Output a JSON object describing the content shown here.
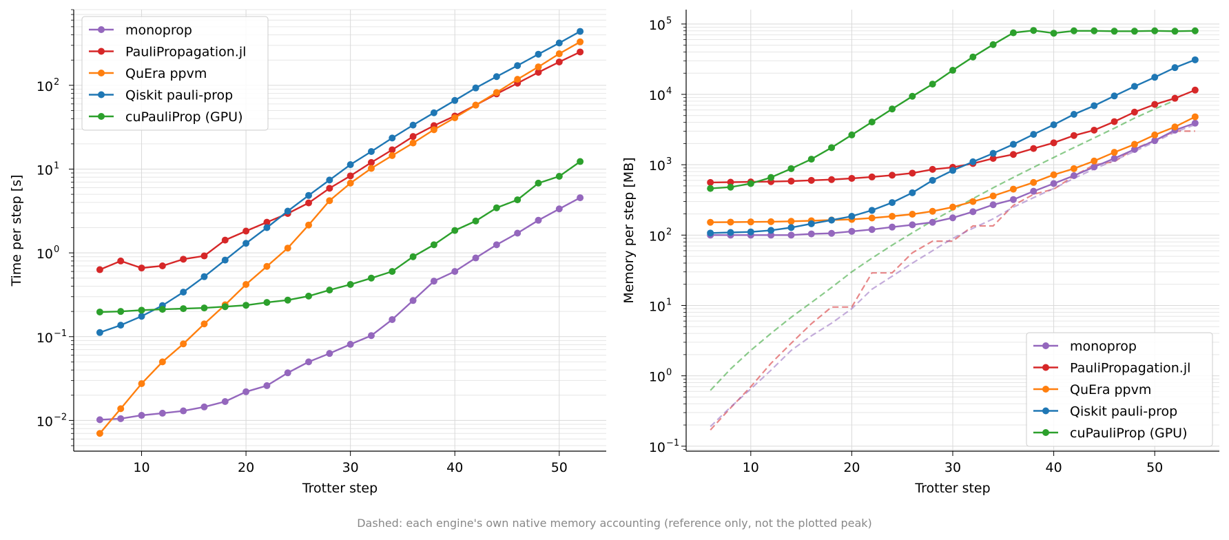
{
  "footnote": "Dashed: each engine's own native memory accounting (reference only, not the plotted peak)",
  "chart_data": [
    {
      "type": "line",
      "xlabel": "Trotter step",
      "ylabel": "Time per step [s]",
      "yscale": "log",
      "xlim": [
        3.5,
        54.5
      ],
      "ylim": [
        0.0043,
        800
      ],
      "xticks": [
        10,
        20,
        30,
        40,
        50
      ],
      "xtick_labels": [
        "10",
        "20",
        "30",
        "40",
        "50"
      ],
      "yticks": [
        0.01,
        0.1,
        1,
        10,
        100
      ],
      "ytick_labels": [
        "10",
        "10",
        "10",
        "10",
        "10"
      ],
      "ytick_exponents": [
        "−2",
        "−1",
        "0",
        "1",
        "2"
      ],
      "grid": true,
      "legend_position": "upper-left",
      "x": [
        6,
        8,
        10,
        12,
        14,
        16,
        18,
        20,
        22,
        24,
        26,
        28,
        30,
        32,
        34,
        36,
        38,
        40,
        42,
        44,
        46,
        48,
        50,
        52
      ],
      "series": [
        {
          "name": "monoprop",
          "color": "#9467bd",
          "values": [
            0.0102,
            0.0105,
            0.0115,
            0.0122,
            0.013,
            0.0145,
            0.0168,
            0.022,
            0.026,
            0.037,
            0.05,
            0.063,
            0.081,
            0.103,
            0.16,
            0.27,
            0.46,
            0.6,
            0.87,
            1.25,
            1.72,
            2.45,
            3.35,
            4.55
          ]
        },
        {
          "name": "PauliPropagation.jl",
          "color": "#d62728",
          "values": [
            0.63,
            0.8,
            0.66,
            0.7,
            0.84,
            0.92,
            1.42,
            1.82,
            2.32,
            2.95,
            3.95,
            5.9,
            8.3,
            12.0,
            17.0,
            24.5,
            33.0,
            43.0,
            58.0,
            79.0,
            106.0,
            143.0,
            190.0,
            250.0
          ]
        },
        {
          "name": "QuEra ppvm",
          "color": "#ff7f0e",
          "values": [
            0.007,
            0.0138,
            0.0275,
            0.05,
            0.082,
            0.142,
            0.24,
            0.42,
            0.69,
            1.14,
            2.15,
            4.2,
            6.8,
            10.2,
            14.5,
            20.5,
            29.5,
            41.0,
            58.0,
            82.0,
            118.0,
            166.0,
            238.0,
            330.0
          ]
        },
        {
          "name": "Qiskit pauli-prop",
          "color": "#1f77b4",
          "values": [
            0.112,
            0.137,
            0.175,
            0.235,
            0.34,
            0.52,
            0.82,
            1.3,
            2.0,
            3.15,
            4.85,
            7.4,
            11.3,
            16.2,
            23.5,
            33.5,
            47.0,
            66.0,
            93.0,
            127.0,
            172.0,
            235.0,
            320.0,
            440.0
          ]
        },
        {
          "name": "cuPauliProp (GPU)",
          "color": "#2ca02c",
          "values": [
            0.197,
            0.2,
            0.207,
            0.212,
            0.216,
            0.22,
            0.228,
            0.237,
            0.256,
            0.273,
            0.305,
            0.36,
            0.42,
            0.5,
            0.6,
            0.9,
            1.25,
            1.85,
            2.4,
            3.45,
            4.3,
            6.8,
            8.2,
            12.3
          ]
        }
      ]
    },
    {
      "type": "line",
      "xlabel": "Trotter step",
      "ylabel": "Memory per step [MB]",
      "yscale": "log",
      "xlim": [
        3.6,
        56.4
      ],
      "ylim": [
        0.085,
        160000
      ],
      "xticks": [
        10,
        20,
        30,
        40,
        50
      ],
      "xtick_labels": [
        "10",
        "20",
        "30",
        "40",
        "50"
      ],
      "yticks": [
        0.1,
        1,
        10,
        100,
        1000,
        10000,
        100000
      ],
      "ytick_labels": [
        "10",
        "10",
        "10",
        "10",
        "10",
        "10",
        "10"
      ],
      "ytick_exponents": [
        "−1",
        "0",
        "1",
        "2",
        "3",
        "4",
        "5"
      ],
      "grid": true,
      "legend_position": "lower-right",
      "x": [
        6,
        8,
        10,
        12,
        14,
        16,
        18,
        20,
        22,
        24,
        26,
        28,
        30,
        32,
        34,
        36,
        38,
        40,
        42,
        44,
        46,
        48,
        50,
        52,
        54
      ],
      "series": [
        {
          "name": "monoprop",
          "color": "#9467bd",
          "values": [
            100,
            100,
            100,
            100,
            100,
            104,
            106,
            113,
            120,
            130,
            140,
            152,
            176,
            215,
            270,
            320,
            420,
            540,
            700,
            930,
            1230,
            1650,
            2200,
            3100,
            3900
          ]
        },
        {
          "name": "PauliPropagation.jl",
          "color": "#d62728",
          "values": [
            560,
            565,
            570,
            575,
            585,
            600,
            615,
            640,
            670,
            710,
            760,
            860,
            920,
            1040,
            1230,
            1400,
            1700,
            2050,
            2600,
            3100,
            4100,
            5600,
            7200,
            8800,
            11500
          ]
        },
        {
          "name": "QuEra ppvm",
          "color": "#ff7f0e",
          "values": [
            152,
            153,
            154,
            155,
            157,
            160,
            164,
            167,
            175,
            185,
            198,
            218,
            250,
            300,
            360,
            450,
            560,
            720,
            880,
            1130,
            1500,
            1950,
            2650,
            3450,
            4800
          ]
        },
        {
          "name": "Qiskit pauli-prop",
          "color": "#1f77b4",
          "values": [
            107,
            109,
            111,
            117,
            128,
            145,
            163,
            185,
            225,
            290,
            400,
            600,
            830,
            1100,
            1450,
            1950,
            2700,
            3700,
            5200,
            6900,
            9500,
            13000,
            17500,
            24000,
            31000
          ]
        },
        {
          "name": "cuPauliProp (GPU)",
          "color": "#2ca02c",
          "values": [
            460,
            480,
            540,
            660,
            880,
            1200,
            1750,
            2650,
            4050,
            6200,
            9400,
            14000,
            22000,
            34000,
            51000,
            75000,
            81000,
            74000,
            80000,
            80000,
            79000,
            79000,
            80000,
            79000,
            80000
          ]
        }
      ],
      "dashed_series": [
        {
          "color": "#2ca02c",
          "x": [
            6,
            8,
            10,
            12,
            14,
            16,
            18,
            20,
            22,
            24,
            26,
            28,
            30,
            32,
            34,
            36,
            38,
            40,
            42,
            44,
            46,
            48,
            50,
            52
          ],
          "values": [
            0.62,
            1.25,
            2.3,
            4.0,
            6.8,
            11.0,
            18.0,
            30.0,
            47.0,
            72.0,
            108.0,
            160.0,
            230.0,
            330.0,
            470.0,
            660.0,
            920.0,
            1270.0,
            1750.0,
            2400.0,
            3300.0,
            4600.0,
            6200.0,
            8200.0
          ]
        },
        {
          "color": "#d62728",
          "x": [
            6,
            8,
            10,
            12,
            14,
            16,
            18,
            20,
            22,
            24,
            26,
            28,
            30,
            32,
            34,
            36,
            38,
            40,
            42,
            44,
            46,
            48,
            50,
            52,
            54
          ],
          "values": [
            0.17,
            0.35,
            0.7,
            1.5,
            2.9,
            5.5,
            9.5,
            9.5,
            29.0,
            29.0,
            56.0,
            82.0,
            82.0,
            135.0,
            135.0,
            265.0,
            380.0,
            450.0,
            690.0,
            1000.0,
            1100.0,
            1700.0,
            2200.0,
            3000.0,
            3000.0
          ]
        },
        {
          "color": "#9467bd",
          "x": [
            6,
            8,
            10,
            12,
            14,
            16,
            18,
            20,
            22,
            24,
            26,
            28,
            30,
            32,
            34,
            36,
            38,
            40,
            42,
            44,
            46,
            48,
            50,
            52,
            54
          ],
          "values": [
            0.19,
            0.36,
            0.65,
            1.2,
            2.3,
            3.7,
            5.6,
            9.0,
            17.0,
            26.0,
            40.0,
            60.0,
            90.0,
            125.0,
            170.0,
            250.0,
            340.0,
            460.0,
            640.0,
            870.0,
            1150.0,
            1550.0,
            2100.0,
            2900.0,
            3700.0
          ]
        }
      ]
    }
  ]
}
